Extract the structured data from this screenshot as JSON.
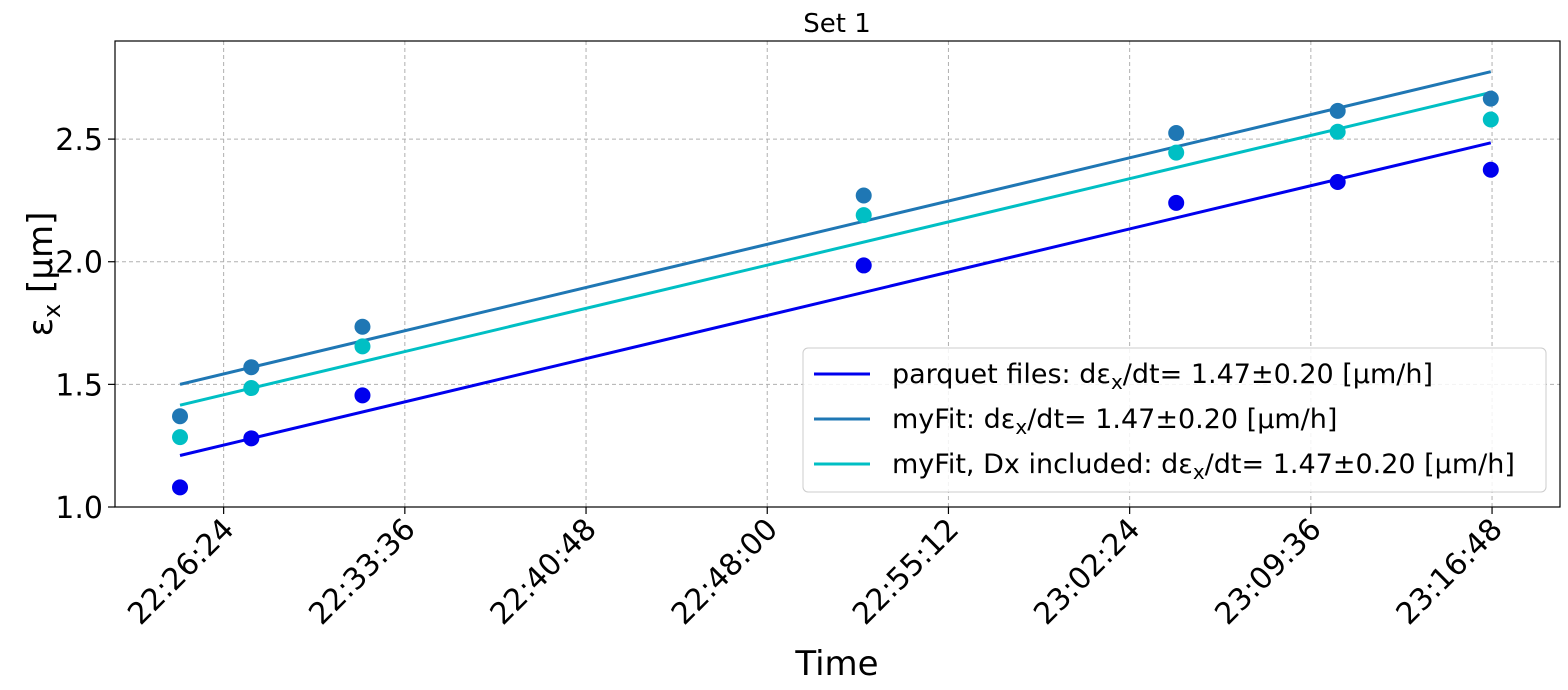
{
  "chart_data": {
    "type": "scatter",
    "title": "Set 1",
    "xlabel": "Time",
    "ylabel": "εx [μm]",
    "ylabel_main": "ε",
    "ylabel_sub": "x",
    "ylabel_unit": " [μm]",
    "xlim": [
      "22:22:05",
      "23:19:30"
    ],
    "ylim": [
      1.0,
      2.9
    ],
    "x_ticks": [
      "22:26:24",
      "22:33:36",
      "22:40:48",
      "22:48:00",
      "22:55:12",
      "23:02:24",
      "23:09:36",
      "23:16:48"
    ],
    "y_ticks": [
      "1.0",
      "1.5",
      "2.0",
      "2.5"
    ],
    "grid": true,
    "legend_position": "lower-right",
    "x_times": [
      "22:24:40",
      "22:27:30",
      "22:31:55",
      "22:51:50",
      "23:04:15",
      "23:10:40",
      "23:16:45"
    ],
    "series": [
      {
        "name": "parquet files",
        "label_pre": "parquet files: dε",
        "label_sub": "x",
        "label_post": "/dt= 1.47±0.20 [μm/h]",
        "color": "#0000ee",
        "points": [
          1.08,
          1.28,
          1.455,
          1.985,
          2.24,
          2.325,
          2.375
        ],
        "fit": [
          1.21,
          2.485
        ]
      },
      {
        "name": "myFit",
        "label_pre": "myFit: dε",
        "label_sub": "x",
        "label_post": "/dt= 1.47±0.20 [μm/h]",
        "color": "#1f77b4",
        "points": [
          1.37,
          1.57,
          1.735,
          2.27,
          2.525,
          2.615,
          2.665
        ],
        "fit": [
          1.5,
          2.775
        ]
      },
      {
        "name": "myFit, Dx included",
        "label_pre": "myFit, Dx included: dε",
        "label_sub": "x",
        "label_post": "/dt= 1.47±0.20 [μm/h]",
        "color": "#00bfc4",
        "points": [
          1.285,
          1.485,
          1.655,
          2.19,
          2.445,
          2.53,
          2.58
        ],
        "fit": [
          1.415,
          2.69
        ]
      }
    ]
  }
}
